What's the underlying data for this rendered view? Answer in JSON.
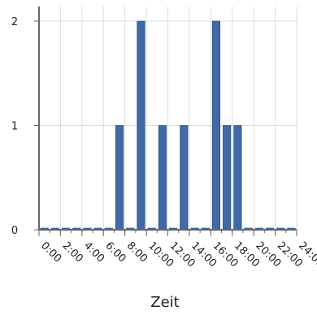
{
  "chart_data": {
    "type": "bar",
    "title": "",
    "xlabel": "Zeit",
    "ylabel": "",
    "x": [
      0,
      1,
      2,
      3,
      4,
      5,
      6,
      7,
      8,
      9,
      10,
      11,
      12,
      13,
      14,
      15,
      16,
      17,
      18,
      19,
      20,
      21,
      22,
      23
    ],
    "values": [
      0,
      0,
      0,
      0,
      0,
      0,
      0,
      1,
      0,
      2,
      0,
      1,
      0,
      1,
      0,
      0,
      2,
      1,
      1,
      0,
      0,
      0,
      0,
      0
    ],
    "xlim": [
      0,
      24
    ],
    "ylim": [
      0,
      2
    ],
    "x_tick_labels": [
      "0:00",
      "2:00",
      "4:00",
      "6:00",
      "8:00",
      "10:00",
      "12:00",
      "14:00",
      "16:00",
      "18:00",
      "20:00",
      "22:00",
      "24:00"
    ],
    "y_ticks": [
      0,
      1,
      2
    ],
    "y_tick_labels": [
      "0",
      "1",
      "2"
    ],
    "grid": true,
    "legend": "none",
    "colors": {
      "bar": "#3f6aa5",
      "bar_edge": "#24446f",
      "grid": "#dddddd",
      "axis": "#666666"
    }
  }
}
